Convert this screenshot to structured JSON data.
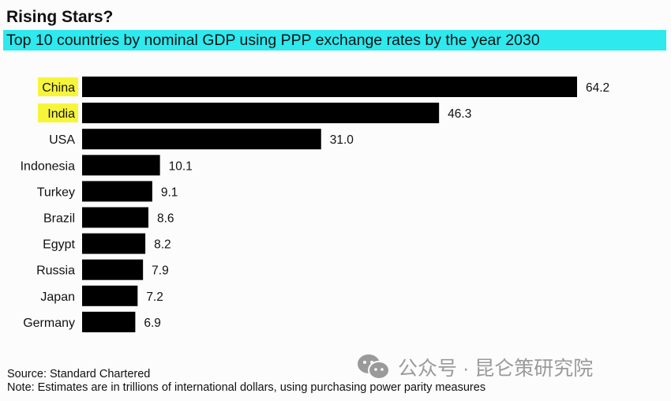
{
  "chart_data": {
    "type": "bar",
    "orientation": "horizontal",
    "title": "Rising Stars?",
    "subtitle": "Top 10 countries by nominal GDP using PPP exchange rates by the year 2030",
    "categories": [
      "China",
      "India",
      "USA",
      "Indonesia",
      "Turkey",
      "Brazil",
      "Egypt",
      "Russia",
      "Japan",
      "Germany"
    ],
    "values": [
      64.2,
      46.3,
      31.0,
      10.1,
      9.1,
      8.6,
      8.2,
      7.9,
      7.2,
      6.9
    ],
    "value_labels": [
      "64.2",
      "46.3",
      "31.0",
      "10.1",
      "9.1",
      "8.6",
      "8.2",
      "7.9",
      "7.2",
      "6.9"
    ],
    "highlighted": [
      "China",
      "India"
    ],
    "xlabel": "",
    "ylabel": "",
    "xlim": [
      0,
      64.2
    ],
    "grid": false,
    "colors": {
      "bar": "#000000",
      "highlight": "#f7f53a",
      "subtitle_bg": "#2ee9ee"
    }
  },
  "footer": {
    "source": "Source: Standard Chartered",
    "note": "Note: Estimates are in trillions of international dollars, using purchasing power parity measures"
  },
  "watermark": {
    "text": "公众号 · 昆仑策研究院",
    "icon": "wechat-icon"
  }
}
